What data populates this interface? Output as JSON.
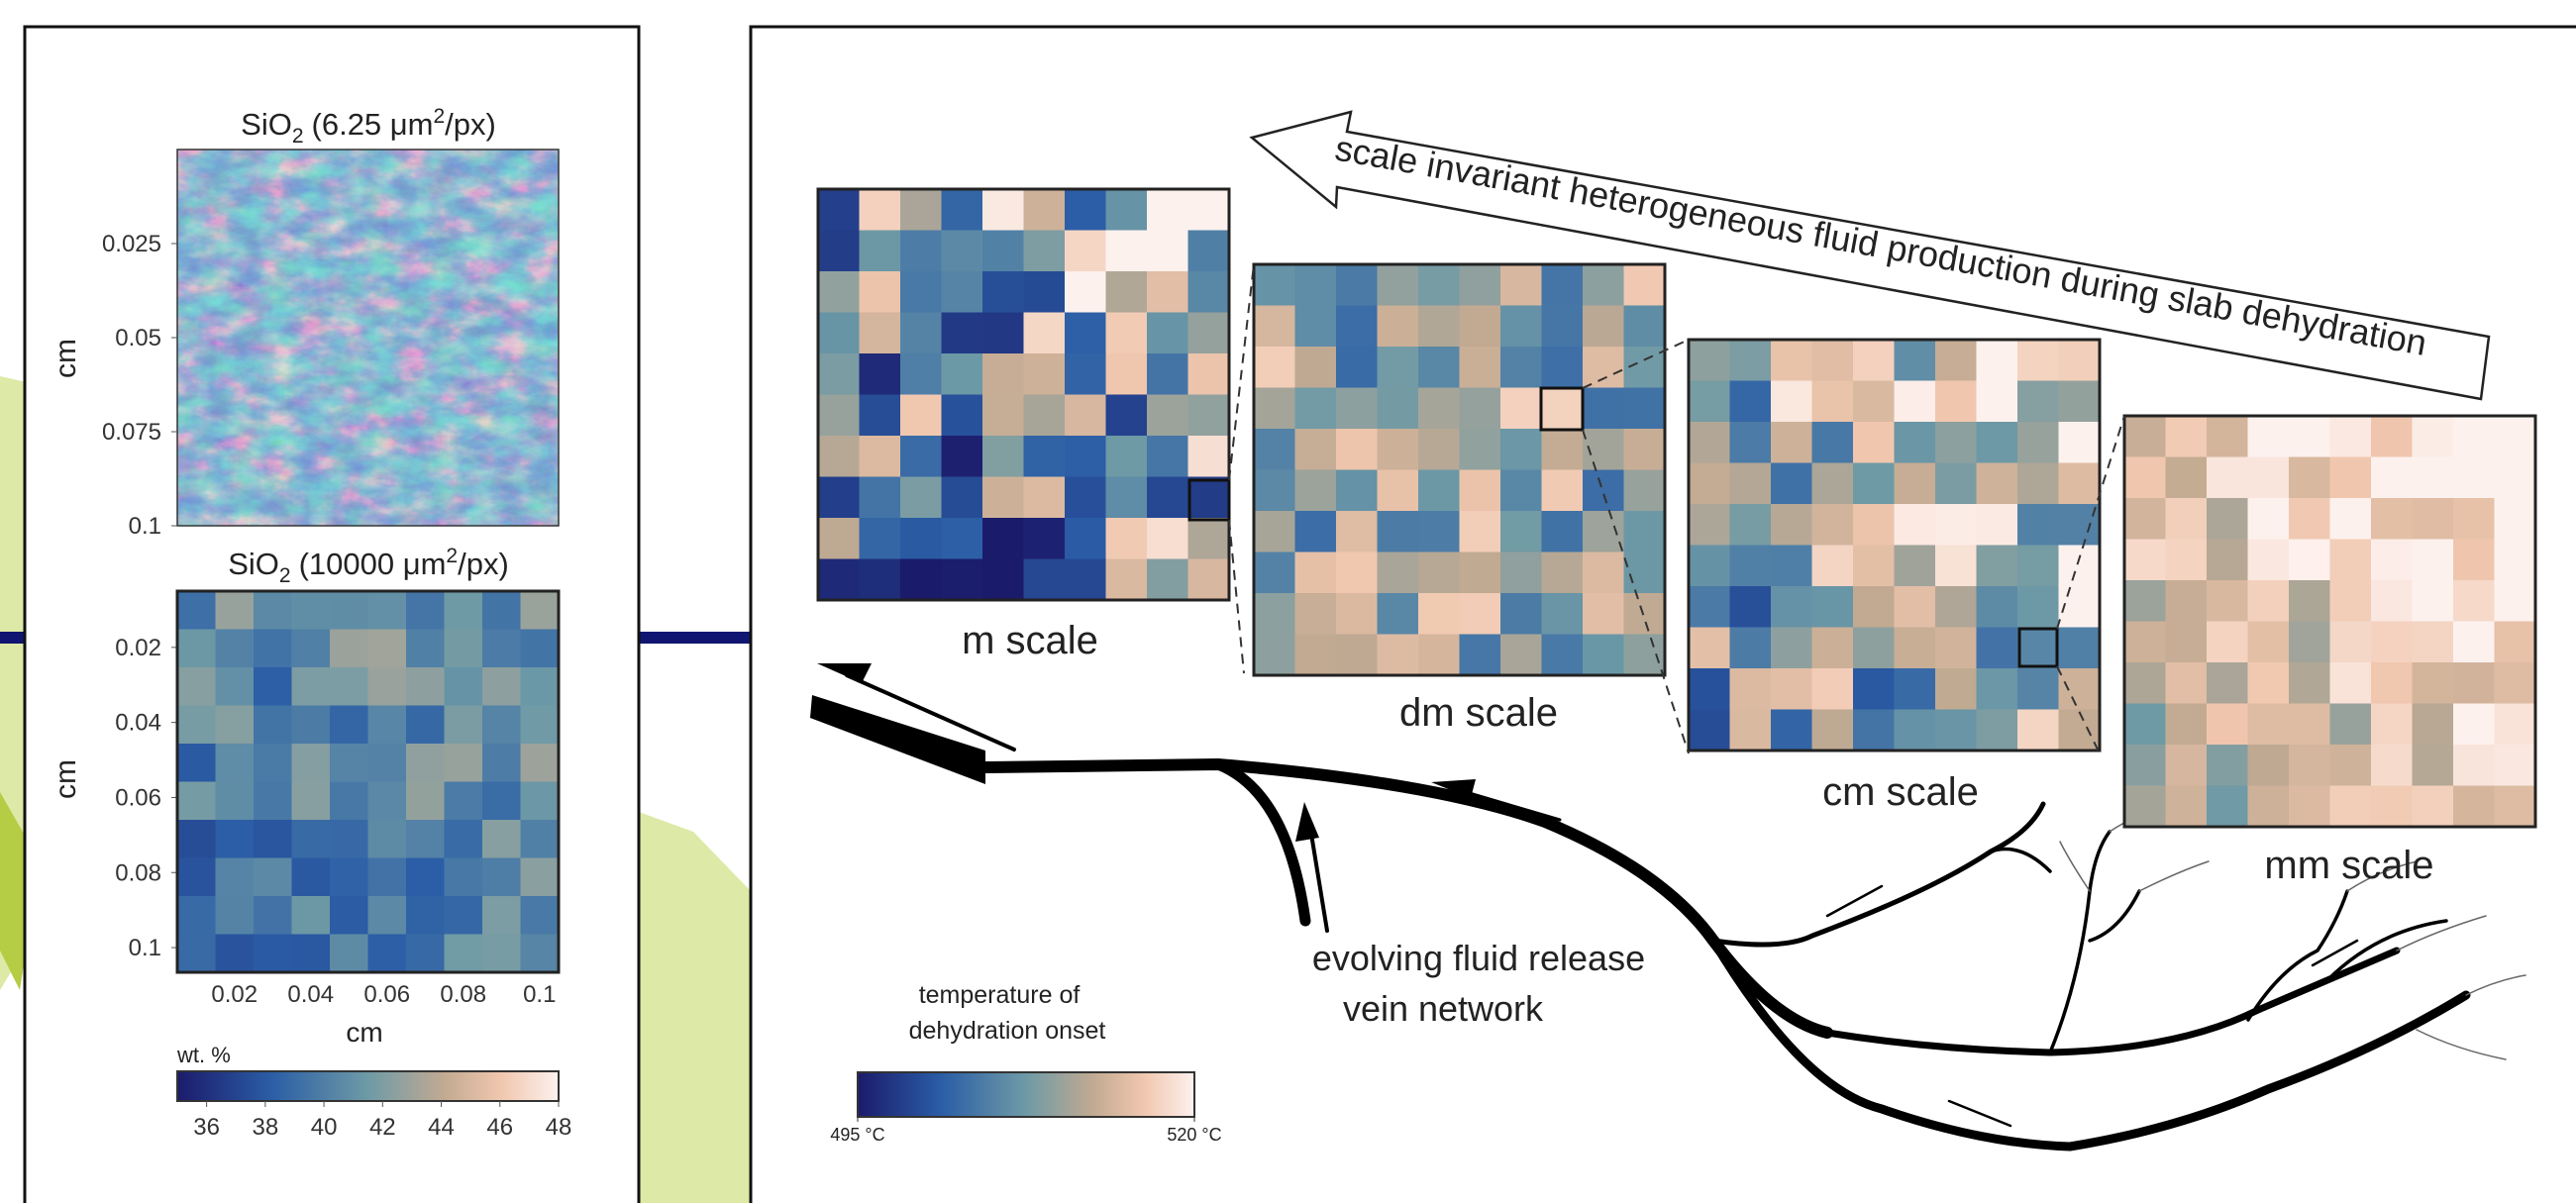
{
  "left_panel": {
    "maps": [
      {
        "title": {
          "formula": "SiO",
          "subscript": "2",
          "resolution": "(6.25 μm",
          "superscript": "2",
          "unit": "/px)"
        },
        "y_label": "cm",
        "ylim": [
          0,
          0.1
        ],
        "yticks": [
          0.025,
          0.05,
          0.075,
          0.1
        ]
      },
      {
        "title": {
          "formula": "SiO",
          "subscript": "2",
          "resolution": "(10000 μm",
          "superscript": "2",
          "unit": "/px)"
        },
        "y_label": "cm",
        "ylim": [
          0.005,
          0.105
        ],
        "yticks": [
          0.02,
          0.04,
          0.06,
          0.08,
          0.1
        ],
        "x_label": "cm",
        "xlim": [
          0.005,
          0.105
        ],
        "xticks": [
          0.02,
          0.04,
          0.06,
          0.08,
          0.1
        ]
      }
    ],
    "colorbar": {
      "label": "wt. %",
      "lim": [
        35,
        48
      ],
      "ticks": [
        36,
        38,
        40,
        42,
        44,
        46,
        48
      ]
    }
  },
  "right_panel": {
    "arrow_text": "scale invariant heterogeneous fluid production during slab dehydration",
    "scales": [
      "m scale",
      "dm scale",
      "cm scale",
      "mm scale"
    ],
    "vein_label": [
      "evolving fluid release",
      "vein network"
    ],
    "colorbar": {
      "title": [
        "temperature of",
        "dehydration onset"
      ],
      "lim": [
        495,
        520
      ],
      "ticks": [
        {
          "value": 495,
          "label": "495 °C"
        },
        {
          "value": 520,
          "label": "520 °C"
        }
      ]
    }
  }
}
